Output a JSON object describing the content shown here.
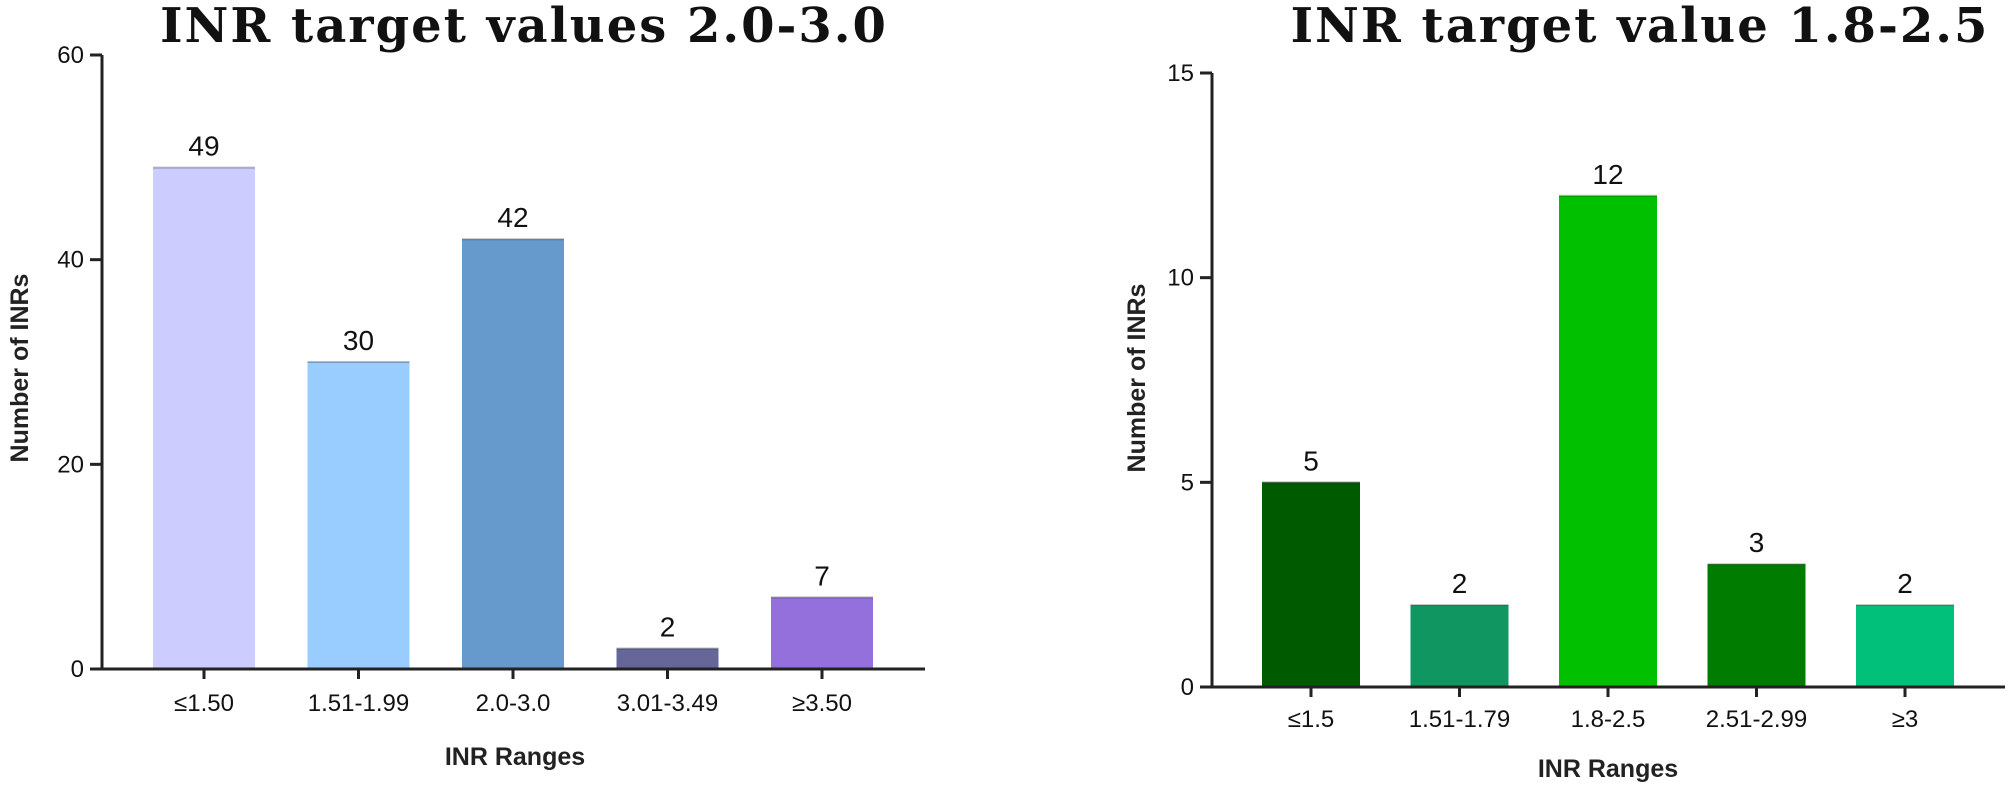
{
  "chart_data": [
    {
      "type": "bar",
      "title": "INR target values 2.0-3.0",
      "xlabel": "INR Ranges",
      "ylabel": "Number of INRs",
      "categories": [
        "≤1.50",
        "1.51-1.99",
        "2.0-3.0",
        "3.01-3.49",
        "≥3.50"
      ],
      "values": [
        49,
        30,
        42,
        2,
        7
      ],
      "colors": [
        "#ccccff",
        "#99ccff",
        "#6699cc",
        "#666699",
        "#9370db"
      ],
      "ylim": [
        0,
        60
      ],
      "yticks": [
        "0",
        "20",
        "40",
        "60"
      ],
      "grid": false,
      "legend": "none"
    },
    {
      "type": "bar",
      "title": "INR target value 1.8-2.5",
      "xlabel": "INR Ranges",
      "ylabel": "Number of INRs",
      "categories": [
        "≤1.5",
        "1.51-1.79",
        "1.8-2.5",
        "2.51-2.99",
        "≥3"
      ],
      "values": [
        5,
        2,
        12,
        3,
        2
      ],
      "colors": [
        "#005a00",
        "#109660",
        "#00c000",
        "#007c00",
        "#00c07a"
      ],
      "ylim": [
        0,
        15
      ],
      "yticks": [
        "0",
        "5",
        "10",
        "15"
      ],
      "grid": false,
      "legend": "none"
    }
  ]
}
